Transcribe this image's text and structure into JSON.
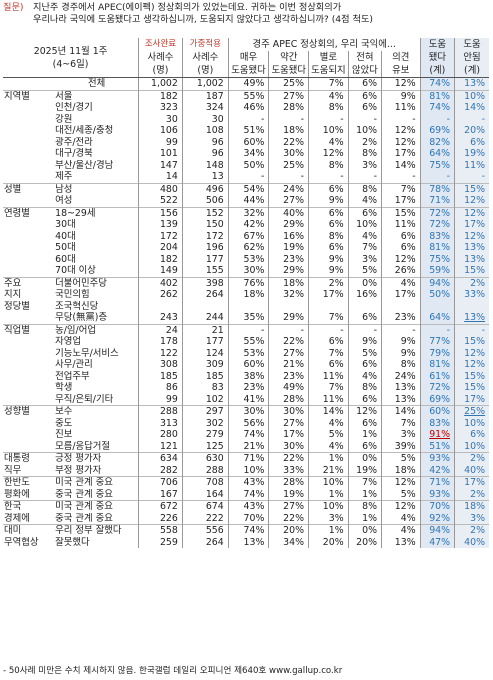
{
  "question": {
    "label": "질문)",
    "lines": [
      "지난주 경주에서 APEC(에이펙) 정상회의가 있었는데요. 귀하는 이번 정상회의가",
      "우리나라 국익에 도움됐다고 생각하십니까, 도움되지 않았다고 생각하십니까? (4점 척도)"
    ]
  },
  "header": {
    "period_line1": "2025년 11월 1주",
    "period_line2": "(4~6일)",
    "col_survey_top": "조사완료",
    "col_survey_bottom": "사례수",
    "col_survey_unit": "(명)",
    "col_weight_top": "가중적용",
    "col_weight_bottom": "사례수",
    "col_weight_unit": "(명)",
    "group_title": "경주 APEC 정상회의, 우리 국익에...",
    "col_a_line1": "매우",
    "col_a_line2": "도움됐다",
    "col_b_line1": "약간",
    "col_b_line2": "도움됐다",
    "col_c_line1": "별로",
    "col_c_line2": "도움되지",
    "col_d_line1": "전혀",
    "col_d_line2": "않았다",
    "col_e_line1": "의견",
    "col_e_line2": "유보",
    "col_f_line1": "도움",
    "col_f_line2": "됐다",
    "col_f_line3": "(계)",
    "col_g_line1": "도움",
    "col_g_line2": "안됨",
    "col_g_line3": "(계)"
  },
  "rows": [
    {
      "cat": "",
      "sub": "전체",
      "n1": "1,002",
      "n2": "1,002",
      "a": "49%",
      "b": "25%",
      "c": "7%",
      "d": "6%",
      "e": "12%",
      "f": "74%",
      "g": "13%",
      "sep": true,
      "total": true
    },
    {
      "cat": "지역별",
      "sub": "서울",
      "n1": "182",
      "n2": "187",
      "a": "55%",
      "b": "27%",
      "c": "4%",
      "d": "6%",
      "e": "9%",
      "f": "81%",
      "g": "10%",
      "sep": true
    },
    {
      "cat": "",
      "sub": "인천/경기",
      "n1": "323",
      "n2": "324",
      "a": "46%",
      "b": "28%",
      "c": "8%",
      "d": "6%",
      "e": "11%",
      "f": "74%",
      "g": "14%"
    },
    {
      "cat": "",
      "sub": "강원",
      "n1": "30",
      "n2": "30",
      "a": "-",
      "b": "-",
      "c": "-",
      "d": "-",
      "e": "-",
      "f": "-",
      "g": "-"
    },
    {
      "cat": "",
      "sub": "대전/세종/충청",
      "n1": "106",
      "n2": "108",
      "a": "51%",
      "b": "18%",
      "c": "10%",
      "d": "10%",
      "e": "12%",
      "f": "69%",
      "g": "20%"
    },
    {
      "cat": "",
      "sub": "광주/전라",
      "n1": "99",
      "n2": "96",
      "a": "60%",
      "b": "22%",
      "c": "4%",
      "d": "2%",
      "e": "12%",
      "f": "82%",
      "g": "6%"
    },
    {
      "cat": "",
      "sub": "대구/경북",
      "n1": "101",
      "n2": "96",
      "a": "34%",
      "b": "30%",
      "c": "12%",
      "d": "8%",
      "e": "17%",
      "f": "64%",
      "g": "19%"
    },
    {
      "cat": "",
      "sub": "부산/울산/경남",
      "n1": "147",
      "n2": "148",
      "a": "50%",
      "b": "25%",
      "c": "8%",
      "d": "3%",
      "e": "14%",
      "f": "75%",
      "g": "11%"
    },
    {
      "cat": "",
      "sub": "제주",
      "n1": "14",
      "n2": "13",
      "a": "-",
      "b": "-",
      "c": "-",
      "d": "-",
      "e": "-",
      "f": "-",
      "g": "-"
    },
    {
      "cat": "성별",
      "sub": "남성",
      "n1": "480",
      "n2": "496",
      "a": "54%",
      "b": "24%",
      "c": "6%",
      "d": "8%",
      "e": "7%",
      "f": "78%",
      "g": "15%",
      "sep": true
    },
    {
      "cat": "",
      "sub": "여성",
      "n1": "522",
      "n2": "506",
      "a": "44%",
      "b": "27%",
      "c": "9%",
      "d": "4%",
      "e": "17%",
      "f": "71%",
      "g": "12%"
    },
    {
      "cat": "연령별",
      "sub": "18~29세",
      "n1": "156",
      "n2": "152",
      "a": "32%",
      "b": "40%",
      "c": "6%",
      "d": "6%",
      "e": "15%",
      "f": "72%",
      "g": "12%",
      "sep": true
    },
    {
      "cat": "",
      "sub": "30대",
      "n1": "139",
      "n2": "150",
      "a": "42%",
      "b": "29%",
      "c": "6%",
      "d": "10%",
      "e": "11%",
      "f": "72%",
      "g": "17%"
    },
    {
      "cat": "",
      "sub": "40대",
      "n1": "172",
      "n2": "172",
      "a": "67%",
      "b": "16%",
      "c": "8%",
      "d": "4%",
      "e": "6%",
      "f": "83%",
      "g": "12%"
    },
    {
      "cat": "",
      "sub": "50대",
      "n1": "204",
      "n2": "196",
      "a": "62%",
      "b": "19%",
      "c": "6%",
      "d": "7%",
      "e": "6%",
      "f": "81%",
      "g": "13%"
    },
    {
      "cat": "",
      "sub": "60대",
      "n1": "182",
      "n2": "177",
      "a": "53%",
      "b": "23%",
      "c": "9%",
      "d": "3%",
      "e": "12%",
      "f": "75%",
      "g": "13%"
    },
    {
      "cat": "",
      "sub": "70대 이상",
      "n1": "149",
      "n2": "155",
      "a": "30%",
      "b": "29%",
      "c": "9%",
      "d": "5%",
      "e": "26%",
      "f": "59%",
      "g": "15%"
    },
    {
      "cat": "주요",
      "sub": "더불어민주당",
      "n1": "402",
      "n2": "398",
      "a": "76%",
      "b": "18%",
      "c": "2%",
      "d": "0%",
      "e": "4%",
      "f": "94%",
      "g": "2%",
      "sep": true
    },
    {
      "cat": "지지",
      "sub": "국민의힘",
      "n1": "262",
      "n2": "264",
      "a": "18%",
      "b": "32%",
      "c": "17%",
      "d": "16%",
      "e": "17%",
      "f": "50%",
      "g": "33%"
    },
    {
      "cat": "정당별",
      "sub": "조국혁신당",
      "n1": "",
      "n2": "",
      "a": "",
      "b": "",
      "c": "",
      "d": "",
      "e": "",
      "f": "",
      "g": ""
    },
    {
      "cat": "",
      "sub": "무당(無黨)층",
      "n1": "243",
      "n2": "244",
      "a": "35%",
      "b": "29%",
      "c": "7%",
      "d": "6%",
      "e": "23%",
      "f": "64%",
      "g": "13%",
      "underg": true
    },
    {
      "cat": "직업별",
      "sub": "농/임/어업",
      "n1": "24",
      "n2": "21",
      "a": "-",
      "b": "-",
      "c": "-",
      "d": "-",
      "e": "-",
      "f": "-",
      "g": "-",
      "sep": true
    },
    {
      "cat": "",
      "sub": "자영업",
      "n1": "178",
      "n2": "177",
      "a": "55%",
      "b": "22%",
      "c": "6%",
      "d": "9%",
      "e": "9%",
      "f": "77%",
      "g": "15%"
    },
    {
      "cat": "",
      "sub": "기능노무/서비스",
      "n1": "122",
      "n2": "124",
      "a": "53%",
      "b": "27%",
      "c": "7%",
      "d": "5%",
      "e": "9%",
      "f": "79%",
      "g": "12%"
    },
    {
      "cat": "",
      "sub": "사무/관리",
      "n1": "308",
      "n2": "309",
      "a": "60%",
      "b": "21%",
      "c": "6%",
      "d": "6%",
      "e": "8%",
      "f": "81%",
      "g": "12%"
    },
    {
      "cat": "",
      "sub": "전업주부",
      "n1": "185",
      "n2": "185",
      "a": "38%",
      "b": "23%",
      "c": "11%",
      "d": "4%",
      "e": "24%",
      "f": "61%",
      "g": "15%"
    },
    {
      "cat": "",
      "sub": "학생",
      "n1": "86",
      "n2": "83",
      "a": "23%",
      "b": "49%",
      "c": "7%",
      "d": "8%",
      "e": "13%",
      "f": "72%",
      "g": "15%"
    },
    {
      "cat": "",
      "sub": "무직/은퇴/기타",
      "n1": "99",
      "n2": "102",
      "a": "41%",
      "b": "28%",
      "c": "11%",
      "d": "6%",
      "e": "13%",
      "f": "69%",
      "g": "17%"
    },
    {
      "cat": "성향별",
      "sub": "보수",
      "n1": "288",
      "n2": "297",
      "a": "30%",
      "b": "30%",
      "c": "14%",
      "d": "12%",
      "e": "14%",
      "f": "60%",
      "g": "25%",
      "sep": true,
      "underg": true
    },
    {
      "cat": "",
      "sub": "중도",
      "n1": "313",
      "n2": "302",
      "a": "56%",
      "b": "27%",
      "c": "4%",
      "d": "6%",
      "e": "7%",
      "f": "83%",
      "g": "10%"
    },
    {
      "cat": "",
      "sub": "진보",
      "n1": "280",
      "n2": "279",
      "a": "74%",
      "b": "17%",
      "c": "5%",
      "d": "1%",
      "e": "3%",
      "f": "91%",
      "g": "6%",
      "redf": true
    },
    {
      "cat": "",
      "sub": "모름/응답거절",
      "n1": "121",
      "n2": "125",
      "a": "21%",
      "b": "30%",
      "c": "4%",
      "d": "6%",
      "e": "39%",
      "f": "51%",
      "g": "10%"
    },
    {
      "cat": "대통령",
      "sub": "긍정 평가자",
      "n1": "634",
      "n2": "630",
      "a": "71%",
      "b": "22%",
      "c": "1%",
      "d": "0%",
      "e": "5%",
      "f": "93%",
      "g": "2%",
      "sep": true
    },
    {
      "cat": "직무",
      "sub": "부정 평가자",
      "n1": "282",
      "n2": "288",
      "a": "10%",
      "b": "33%",
      "c": "21%",
      "d": "19%",
      "e": "18%",
      "f": "42%",
      "g": "40%"
    },
    {
      "cat": "한반도",
      "sub": "미국 관계 중요",
      "n1": "706",
      "n2": "708",
      "a": "43%",
      "b": "28%",
      "c": "10%",
      "d": "7%",
      "e": "12%",
      "f": "71%",
      "g": "17%",
      "sep": true
    },
    {
      "cat": "평화에",
      "sub": "중국 관계 중요",
      "n1": "167",
      "n2": "164",
      "a": "74%",
      "b": "19%",
      "c": "1%",
      "d": "1%",
      "e": "5%",
      "f": "93%",
      "g": "2%"
    },
    {
      "cat": "한국",
      "sub": "미국 관계 중요",
      "n1": "672",
      "n2": "674",
      "a": "43%",
      "b": "27%",
      "c": "10%",
      "d": "8%",
      "e": "12%",
      "f": "70%",
      "g": "18%",
      "sep": true
    },
    {
      "cat": "경제에",
      "sub": "중국 관계 중요",
      "n1": "226",
      "n2": "222",
      "a": "70%",
      "b": "22%",
      "c": "3%",
      "d": "1%",
      "e": "4%",
      "f": "92%",
      "g": "3%"
    },
    {
      "cat": "대미",
      "sub": "우리 정부 잘했다",
      "n1": "558",
      "n2": "556",
      "a": "74%",
      "b": "20%",
      "c": "1%",
      "d": "0%",
      "e": "4%",
      "f": "94%",
      "g": "2%",
      "sep": true
    },
    {
      "cat": "무역협상",
      "sub": "잘못했다",
      "n1": "259",
      "n2": "264",
      "a": "13%",
      "b": "34%",
      "c": "20%",
      "d": "20%",
      "e": "13%",
      "f": "47%",
      "g": "40%"
    }
  ],
  "footnote": "- 50사례 미만은 수치 제시하지 않음. 한국갤럽 데일리 오피니언 제640호 www.gallup.co.kr"
}
